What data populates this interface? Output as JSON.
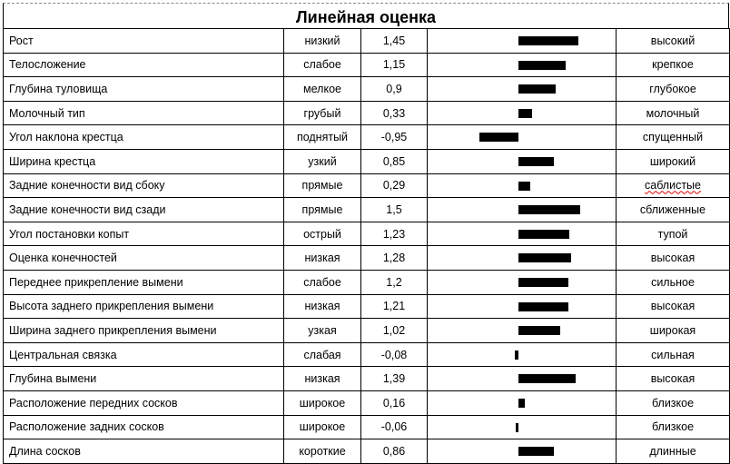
{
  "title": "Линейная оценка",
  "rows": [
    {
      "trait": "Рост",
      "low": "низкий",
      "value": "1,45",
      "num": 1.45,
      "high": "высокий"
    },
    {
      "trait": "Телосложение",
      "low": "слабое",
      "value": "1,15",
      "num": 1.15,
      "high": "крепкое"
    },
    {
      "trait": "Глубина туловища",
      "low": "мелкое",
      "value": "0,9",
      "num": 0.9,
      "high": "глубокое"
    },
    {
      "trait": "Молочный тип",
      "low": "грубый",
      "value": "0,33",
      "num": 0.33,
      "high": "молочный"
    },
    {
      "trait": "Угол наклона крестца",
      "low": "поднятый",
      "value": "-0,95",
      "num": -0.95,
      "high": "спущенный"
    },
    {
      "trait": "Ширина крестца",
      "low": "узкий",
      "value": "0,85",
      "num": 0.85,
      "high": "широкий"
    },
    {
      "trait": "Задние конечности вид сбоку",
      "low": "прямые",
      "value": "0,29",
      "num": 0.29,
      "high": "саблистые",
      "spell": true
    },
    {
      "trait": "Задние конечности вид сзади",
      "low": "прямые",
      "value": "1,5",
      "num": 1.5,
      "high": "сближенные"
    },
    {
      "trait": "Угол постановки копыт",
      "low": "острый",
      "value": "1,23",
      "num": 1.23,
      "high": "тупой"
    },
    {
      "trait": "Оценка конечностей",
      "low": "низкая",
      "value": "1,28",
      "num": 1.28,
      "high": "высокая"
    },
    {
      "trait": "Переднее прикрепление вымени",
      "low": "слабое",
      "value": "1,2",
      "num": 1.2,
      "high": "сильное"
    },
    {
      "trait": "Высота заднего прикрепления вымени",
      "low": "низкая",
      "value": "1,21",
      "num": 1.21,
      "high": "высокая"
    },
    {
      "trait": "Ширина заднего прикрепления вымени",
      "low": "узкая",
      "value": "1,02",
      "num": 1.02,
      "high": "широкая"
    },
    {
      "trait": "Центральная связка",
      "low": "слабая",
      "value": "-0,08",
      "num": -0.08,
      "high": "сильная"
    },
    {
      "trait": "Глубина вымени",
      "low": "низкая",
      "value": "1,39",
      "num": 1.39,
      "high": "высокая"
    },
    {
      "trait": "Расположение передних сосков",
      "low": "широкое",
      "value": "0,16",
      "num": 0.16,
      "high": "близкое"
    },
    {
      "trait": "Расположение задних сосков",
      "low": "широкое",
      "value": "-0,06",
      "num": -0.06,
      "high": "близкое"
    },
    {
      "trait": "Длина сосков",
      "low": "короткие",
      "value": "0,86",
      "num": 0.86,
      "high": "длинные"
    }
  ],
  "colors": {
    "bar": "#000000",
    "spellcheck": "#e00000"
  }
}
